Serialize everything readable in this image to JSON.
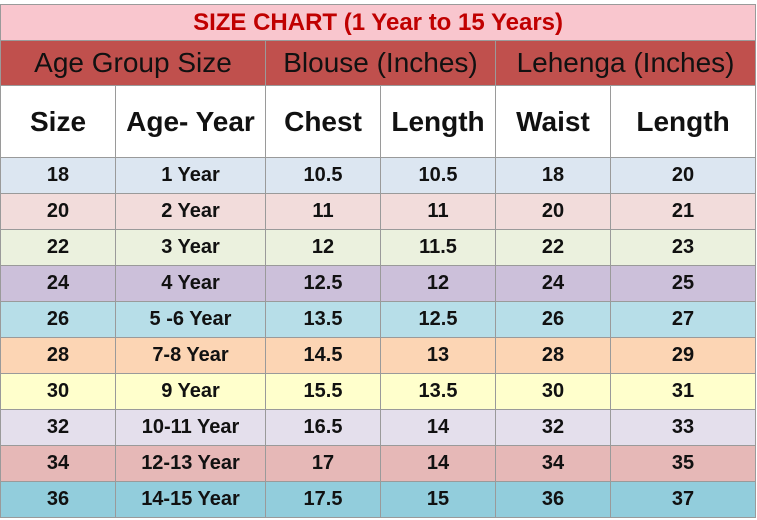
{
  "table": {
    "title": "SIZE CHART (1 Year to 15 Years)",
    "groups": [
      "Age Group Size",
      "Blouse (Inches)",
      "Lehenga (Inches)"
    ],
    "columns": [
      "Size",
      "Age- Year",
      "Chest",
      "Length",
      "Waist",
      "Length"
    ],
    "rows": [
      [
        "18",
        "1 Year",
        "10.5",
        "10.5",
        "18",
        "20"
      ],
      [
        "20",
        "2 Year",
        "11",
        "11",
        "20",
        "21"
      ],
      [
        "22",
        "3 Year",
        "12",
        "11.5",
        "22",
        "23"
      ],
      [
        "24",
        "4 Year",
        "12.5",
        "12",
        "24",
        "25"
      ],
      [
        "26",
        "5 -6 Year",
        "13.5",
        "12.5",
        "26",
        "27"
      ],
      [
        "28",
        "7-8 Year",
        "14.5",
        "13",
        "28",
        "29"
      ],
      [
        "30",
        "9 Year",
        "15.5",
        "13.5",
        "30",
        "31"
      ],
      [
        "32",
        "10-11 Year",
        "16.5",
        "14",
        "32",
        "33"
      ],
      [
        "34",
        "12-13 Year",
        "17",
        "14",
        "34",
        "35"
      ],
      [
        "36",
        "14-15 Year",
        "17.5",
        "15",
        "36",
        "37"
      ]
    ]
  }
}
